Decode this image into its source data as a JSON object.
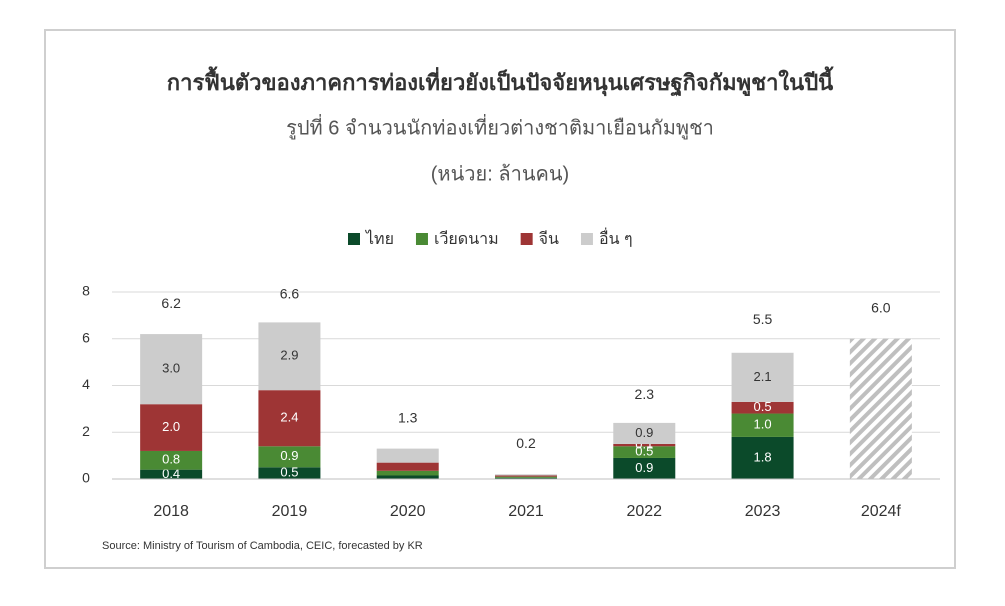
{
  "chart_data": {
    "type": "stacked_bar",
    "title": "การฟื้นตัวของภาคการท่องเที่ยวยังเป็นปัจจัยหนุนเศรษฐกิจกัมพูชาในปีนี้",
    "subtitle": "รูปที่ 6 จำนวนนักท่องเที่ยวต่างชาติมาเยือนกัมพูชา",
    "unit": "(หน่วย: ล้านคน)",
    "source": "Source: Ministry of Tourism of Cambodia, CEIC, forecasted by KR",
    "categories": [
      "2018",
      "2019",
      "2020",
      "2021",
      "2022",
      "2023",
      "2024f"
    ],
    "series": [
      {
        "name": "ไทย",
        "color": "#0b4a2a",
        "values": [
          0.4,
          0.5,
          0.15,
          0.05,
          0.9,
          1.8,
          null
        ],
        "value_labels": [
          "0.4",
          "0.5",
          null,
          null,
          "0.9",
          "1.8",
          null
        ]
      },
      {
        "name": "เวียดนาม",
        "color": "#4a8a34",
        "values": [
          0.8,
          0.9,
          0.2,
          0.05,
          0.5,
          1.0,
          null
        ],
        "value_labels": [
          "0.8",
          "0.9",
          null,
          null,
          "0.5",
          "1.0",
          null
        ]
      },
      {
        "name": "จีน",
        "color": "#9e3535",
        "values": [
          2.0,
          2.4,
          0.35,
          0.05,
          0.1,
          0.5,
          null
        ],
        "value_labels": [
          "2.0",
          "2.4",
          null,
          null,
          "0.1",
          "0.5",
          null
        ]
      },
      {
        "name": "อื่น ๆ",
        "color": "#cccccc",
        "values": [
          3.0,
          2.9,
          0.6,
          0.05,
          0.9,
          2.1,
          null
        ],
        "value_labels": [
          "3.0",
          "2.9",
          null,
          null,
          "0.9",
          "2.1",
          null
        ]
      }
    ],
    "totals": {
      "values": [
        6.2,
        6.6,
        1.3,
        0.2,
        2.3,
        5.5,
        6.0
      ],
      "value_labels": [
        "6.2",
        "6.6",
        "1.3",
        "0.2",
        "2.3",
        "5.5",
        "6.0"
      ]
    },
    "forecast_pattern": "hatch",
    "ylim": [
      0,
      8
    ],
    "yticks": [
      0,
      2,
      4,
      6,
      8
    ],
    "grid": true,
    "legend": "top"
  }
}
